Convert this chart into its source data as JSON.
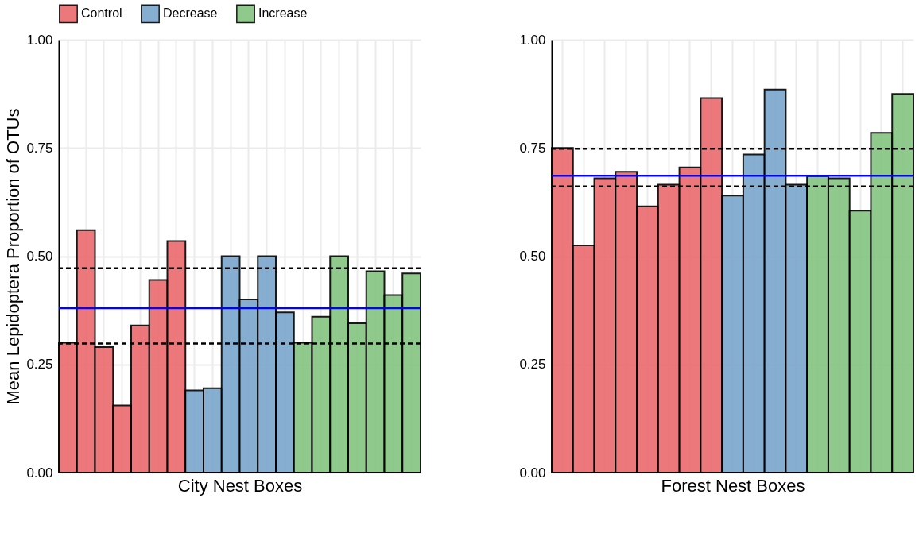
{
  "chart_data": [
    {
      "type": "bar",
      "xlabel": "City Nest Boxes",
      "ylabel": "Mean Lepidoptera Proportion of OTUs",
      "legend": "top",
      "grid": true,
      "categories": [
        null,
        null,
        null,
        null,
        null,
        null,
        null,
        null,
        null,
        null,
        null,
        null,
        null,
        null,
        null,
        null,
        null,
        null,
        null,
        null
      ],
      "series": [
        {
          "name": "Control",
          "color": "#ec6a6d",
          "values": [
            0.3,
            0.56,
            0.29,
            0.155,
            0.34,
            0.445,
            0.535,
            null,
            null,
            null,
            null,
            null,
            null,
            null,
            null,
            null,
            null,
            null,
            null,
            null
          ]
        },
        {
          "name": "Decrease",
          "color": "#7aa6cc",
          "values": [
            null,
            null,
            null,
            null,
            null,
            null,
            null,
            0.19,
            0.195,
            0.5,
            0.4,
            0.5,
            0.37,
            null,
            null,
            null,
            null,
            null,
            null,
            null
          ]
        },
        {
          "name": "Increase",
          "color": "#83c47f",
          "values": [
            null,
            null,
            null,
            null,
            null,
            null,
            null,
            null,
            null,
            null,
            null,
            null,
            null,
            0.3,
            0.36,
            0.5,
            0.345,
            0.465,
            0.41,
            0.46
          ]
        }
      ],
      "ylim": [
        0,
        1
      ],
      "yticks": [
        {
          "value": 0,
          "label": "0.00"
        },
        {
          "value": 0.25,
          "label": "0.25"
        },
        {
          "value": 0.5,
          "label": "0.50"
        },
        {
          "value": 0.75,
          "label": "0.75"
        },
        {
          "value": 1,
          "label": "1.00"
        }
      ],
      "ref_lines": [
        {
          "axis": "y",
          "value": 0.38,
          "color": "#0000ff",
          "line_style": "solid"
        },
        {
          "axis": "y",
          "value": 0.472,
          "color": "#000000",
          "line_style": "dashed"
        },
        {
          "axis": "y",
          "value": 0.298,
          "color": "#000000",
          "line_style": "dashed"
        }
      ]
    },
    {
      "type": "bar",
      "xlabel": "Forest Nest Boxes",
      "grid": true,
      "categories": [
        null,
        null,
        null,
        null,
        null,
        null,
        null,
        null,
        null,
        null,
        null,
        null,
        null,
        null,
        null,
        null,
        null
      ],
      "series": [
        {
          "color": "#ec6a6d",
          "values": [
            0.75,
            0.525,
            0.68,
            0.695,
            0.615,
            0.665,
            0.705,
            0.865,
            null,
            null,
            null,
            null,
            null,
            null,
            null,
            null,
            null
          ]
        },
        {
          "color": "#7aa6cc",
          "values": [
            null,
            null,
            null,
            null,
            null,
            null,
            null,
            null,
            0.64,
            0.735,
            0.885,
            0.665,
            null,
            null,
            null,
            null,
            null
          ]
        },
        {
          "color": "#83c47f",
          "values": [
            null,
            null,
            null,
            null,
            null,
            null,
            null,
            null,
            null,
            null,
            null,
            null,
            0.685,
            0.68,
            0.605,
            0.785,
            0.875
          ]
        }
      ],
      "ylim": [
        0,
        1
      ],
      "yticks": [
        {
          "value": 0,
          "label": "0.00"
        },
        {
          "value": 0.25,
          "label": "0.25"
        },
        {
          "value": 0.5,
          "label": "0.50"
        },
        {
          "value": 0.75,
          "label": "0.75"
        },
        {
          "value": 1,
          "label": "1.00"
        }
      ],
      "ref_lines": [
        {
          "axis": "y",
          "value": 0.686,
          "color": "#0000ff",
          "line_style": "solid"
        },
        {
          "axis": "y",
          "value": 0.748,
          "color": "#000000",
          "line_style": "dashed"
        },
        {
          "axis": "y",
          "value": 0.661,
          "color": "#000000",
          "line_style": "dashed"
        }
      ]
    }
  ]
}
